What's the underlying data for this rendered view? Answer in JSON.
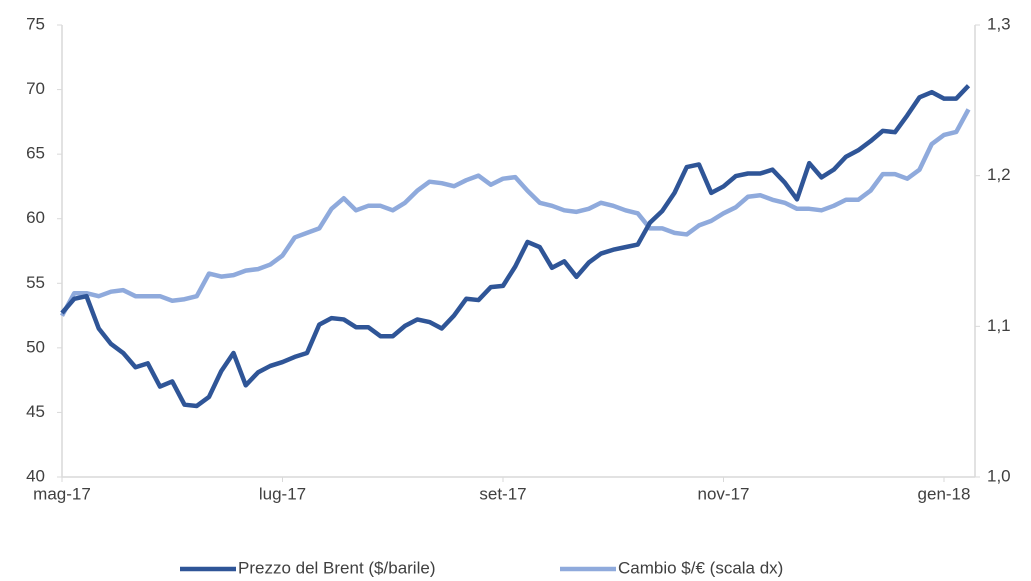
{
  "chart_data": {
    "type": "line",
    "categories": [
      "mag-17",
      null,
      null,
      null,
      null,
      null,
      null,
      null,
      null,
      null,
      null,
      null,
      null,
      null,
      null,
      null,
      null,
      null,
      "lug-17",
      null,
      null,
      null,
      null,
      null,
      null,
      null,
      null,
      null,
      null,
      null,
      null,
      null,
      null,
      null,
      null,
      null,
      "set-17",
      null,
      null,
      null,
      null,
      null,
      null,
      null,
      null,
      null,
      null,
      null,
      null,
      null,
      null,
      null,
      null,
      null,
      "nov-17",
      null,
      null,
      null,
      null,
      null,
      null,
      null,
      null,
      null,
      null,
      null,
      null,
      null,
      null,
      null,
      null,
      null,
      "gen-18",
      null,
      null
    ],
    "series": [
      {
        "name": "Prezzo del Brent ($/barile)",
        "color": "#2f5597",
        "values": [
          52.7,
          53.8,
          54.0,
          51.5,
          50.3,
          49.6,
          48.5,
          48.8,
          47.0,
          47.4,
          45.6,
          45.5,
          46.2,
          48.2,
          49.6,
          47.1,
          48.1,
          48.6,
          48.9,
          49.3,
          49.6,
          51.8,
          52.3,
          52.2,
          51.6,
          51.6,
          50.9,
          50.9,
          51.7,
          52.2,
          52.0,
          51.5,
          52.5,
          53.8,
          53.7,
          54.7,
          54.8,
          56.3,
          58.2,
          57.8,
          56.2,
          56.7,
          55.5,
          56.6,
          57.3,
          57.6,
          57.8,
          58.0,
          59.7,
          60.6,
          62.0,
          64.0,
          64.2,
          62.0,
          62.5,
          63.3,
          63.5,
          63.5,
          63.8,
          62.8,
          61.5,
          64.3,
          63.2,
          63.8,
          64.8,
          65.3,
          66.0,
          66.8,
          66.7,
          68.0,
          69.4,
          69.8,
          69.3,
          69.3,
          70.3
        ]
      },
      {
        "name": "Cambio $/€ (scala dx)",
        "color": "#8faadc",
        "axis": "y2",
        "values": [
          1.107,
          1.122,
          1.122,
          1.12,
          1.123,
          1.124,
          1.12,
          1.12,
          1.12,
          1.117,
          1.118,
          1.12,
          1.135,
          1.133,
          1.134,
          1.137,
          1.138,
          1.141,
          1.147,
          1.159,
          1.162,
          1.165,
          1.178,
          1.185,
          1.177,
          1.18,
          1.18,
          1.177,
          1.182,
          1.19,
          1.196,
          1.195,
          1.193,
          1.197,
          1.2,
          1.194,
          1.198,
          1.199,
          1.19,
          1.182,
          1.18,
          1.177,
          1.176,
          1.178,
          1.182,
          1.18,
          1.177,
          1.175,
          1.165,
          1.165,
          1.162,
          1.161,
          1.167,
          1.17,
          1.175,
          1.179,
          1.186,
          1.187,
          1.184,
          1.182,
          1.178,
          1.178,
          1.177,
          1.18,
          1.184,
          1.184,
          1.19,
          1.201,
          1.201,
          1.198,
          1.204,
          1.221,
          1.227,
          1.229,
          1.244
        ]
      }
    ],
    "ylim": [
      40,
      75
    ],
    "yticks": [
      40,
      45,
      50,
      55,
      60,
      65,
      70,
      75
    ],
    "y2lim": [
      1.0,
      1.3
    ],
    "y2ticks": [
      {
        "value": 1.0,
        "label": "1,0"
      },
      {
        "value": 1.1,
        "label": "1,1"
      },
      {
        "value": 1.2,
        "label": "1,2"
      },
      {
        "value": 1.3,
        "label": "1,3"
      }
    ],
    "grid": false,
    "legend": "bottom"
  }
}
